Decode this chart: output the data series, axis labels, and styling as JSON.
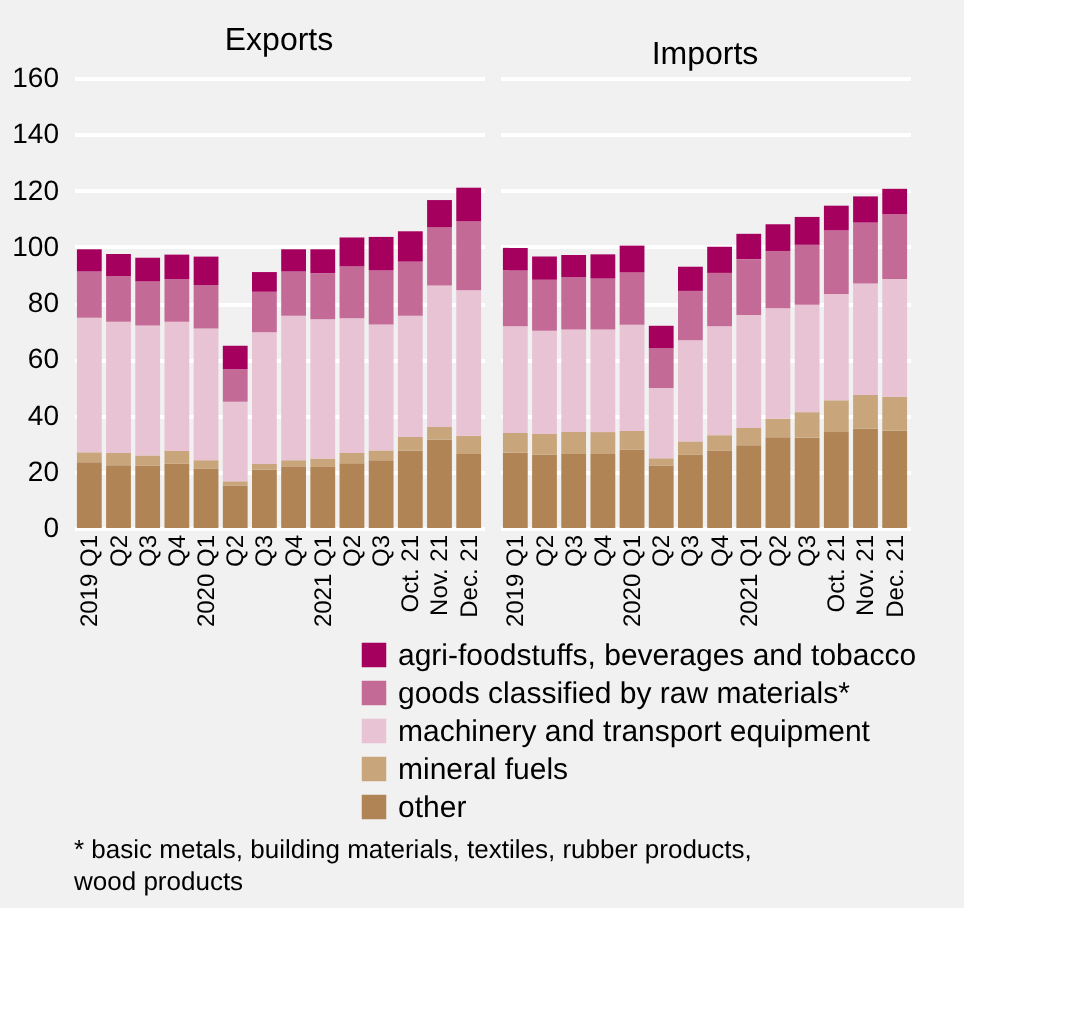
{
  "chart_data": [
    {
      "type": "bar",
      "title": "Exports",
      "stacked": true,
      "categories": [
        "2019 Q1",
        "Q2",
        "Q3",
        "Q4",
        "2020 Q1",
        "Q2",
        "Q3",
        "Q4",
        "2021 Q1",
        "Q2",
        "Q3",
        "Oct. 21",
        "Nov. 21",
        "Dec. 21"
      ],
      "ylim": [
        0,
        160
      ],
      "yticks": [
        0,
        20,
        40,
        60,
        80,
        100,
        120,
        140,
        160
      ],
      "grid": "y",
      "legend": "bottom",
      "series": [
        {
          "name": "other",
          "color": "#b08454",
          "values": [
            23.4,
            22.3,
            22.1,
            22.8,
            21.0,
            15.1,
            20.8,
            21.7,
            21.7,
            23.0,
            24.1,
            27.6,
            31.5,
            26.3
          ]
        },
        {
          "name": "mineral fuels",
          "color": "#c9a57c",
          "values": [
            3.5,
            4.4,
            3.7,
            4.6,
            3.1,
            1.5,
            2.0,
            2.4,
            3.0,
            3.7,
            3.5,
            4.8,
            4.4,
            6.5
          ]
        },
        {
          "name": "machinery and transport equipment",
          "color": "#e8c3d4",
          "values": [
            47.9,
            46.6,
            46.2,
            45.9,
            46.8,
            28.3,
            46.8,
            51.4,
            49.5,
            47.9,
            44.8,
            43.1,
            50.3,
            51.7
          ]
        },
        {
          "name": "goods classified by raw materials*",
          "color": "#c46a96",
          "values": [
            16.4,
            16.2,
            15.7,
            15.1,
            15.5,
            11.6,
            14.4,
            15.7,
            16.4,
            18.4,
            19.3,
            19.2,
            20.8,
            24.5
          ]
        },
        {
          "name": "agri-foodstuffs, beverages and tobacco",
          "color": "#a5005d",
          "values": [
            7.9,
            7.9,
            8.4,
            8.8,
            10.1,
            8.3,
            7.0,
            7.9,
            8.5,
            10.3,
            11.8,
            10.8,
            9.6,
            12.0
          ]
        }
      ]
    },
    {
      "type": "bar",
      "title": "Imports",
      "stacked": true,
      "categories": [
        "2019 Q1",
        "Q2",
        "Q3",
        "Q4",
        "2020 Q1",
        "Q2",
        "Q3",
        "Q4",
        "2021 Q1",
        "Q2",
        "Q3",
        "Oct. 21",
        "Nov. 21",
        "Dec. 21"
      ],
      "ylim": [
        0,
        160
      ],
      "yticks": [
        0,
        20,
        40,
        60,
        80,
        100,
        120,
        140,
        160
      ],
      "tick_labels": "x",
      "grid": "y",
      "series": [
        {
          "color": "#b08454",
          "values": [
            26.8,
            26.1,
            26.3,
            26.3,
            27.9,
            22.1,
            26.1,
            27.4,
            29.4,
            32.3,
            32.1,
            34.1,
            35.4,
            34.7
          ]
        },
        {
          "color": "#c9a57c",
          "values": [
            7.0,
            7.3,
            7.8,
            7.8,
            6.6,
            2.7,
            4.7,
            5.6,
            6.2,
            6.6,
            9.1,
            11.3,
            11.9,
            12.0
          ]
        },
        {
          "color": "#e8c3d4",
          "values": [
            37.9,
            36.7,
            36.5,
            36.5,
            37.8,
            25.0,
            36.0,
            38.7,
            40.1,
            39.2,
            38.2,
            37.8,
            39.6,
            41.8
          ]
        },
        {
          "color": "#c46a96",
          "values": [
            19.9,
            18.2,
            18.6,
            18.1,
            18.6,
            14.1,
            17.5,
            19.0,
            19.9,
            20.4,
            21.3,
            22.6,
            21.7,
            23.0
          ]
        },
        {
          "color": "#a5005d",
          "values": [
            8.0,
            8.2,
            7.9,
            8.6,
            9.5,
            8.0,
            8.6,
            9.3,
            9.0,
            9.5,
            9.9,
            8.8,
            9.3,
            9.1
          ]
        }
      ],
      "annotations": [
        "* basic metals, building materials, textiles, rubber products, wood products"
      ]
    }
  ]
}
